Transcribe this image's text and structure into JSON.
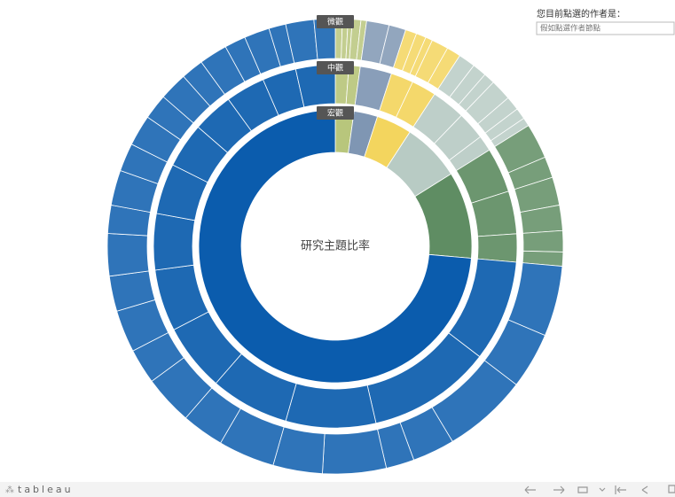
{
  "chart_data": {
    "type": "sunburst",
    "center_label": "研究主題比率",
    "levels": [
      "宏觀",
      "中觀",
      "微觀"
    ],
    "nodes": [
      {
        "color": "#b8c67c",
        "value": 22,
        "children": [
          {
            "value": 12,
            "children": [
              5,
              4,
              3
            ]
          },
          {
            "value": 10,
            "children": [
              6,
              4
            ]
          }
        ]
      },
      {
        "color": "#7f96b3",
        "value": 28,
        "children": [
          {
            "value": 28,
            "children": [
              16,
              12
            ]
          }
        ]
      },
      {
        "color": "#f3d55e",
        "value": 42,
        "children": [
          {
            "value": 20,
            "children": [
              8,
              7,
              5
            ]
          },
          {
            "value": 22,
            "children": [
              12,
              10
            ]
          }
        ]
      },
      {
        "color": "#b8cbc4",
        "value": 69,
        "children": [
          {
            "value": 30,
            "children": [
              12,
              10,
              8
            ]
          },
          {
            "value": 25,
            "children": [
              15,
              10
            ]
          },
          {
            "value": 14,
            "children": [
              8,
              6
            ]
          }
        ]
      },
      {
        "color": "#5f8d63",
        "value": 103,
        "children": [
          {
            "value": 40,
            "children": [
              25,
              15
            ]
          },
          {
            "value": 38,
            "children": [
              20,
              18
            ]
          },
          {
            "value": 25,
            "children": [
              15,
              10
            ]
          }
        ]
      },
      {
        "color": "#0b5cad",
        "value": 736,
        "children": [
          {
            "value": 90,
            "children": [
              50,
              40
            ]
          },
          {
            "value": 110,
            "children": [
              60,
              30,
              20
            ]
          },
          {
            "value": 80,
            "children": [
              45,
              35
            ]
          },
          {
            "value": 70,
            "children": [
              40,
              30
            ]
          },
          {
            "value": 60,
            "children": [
              35,
              25
            ]
          },
          {
            "value": 55,
            "children": [
              30,
              25
            ]
          },
          {
            "value": 50,
            "children": [
              30,
              20
            ]
          },
          {
            "value": 45,
            "children": [
              25,
              20
            ]
          },
          {
            "value": 40,
            "children": [
              22,
              18
            ]
          },
          {
            "value": 36,
            "children": [
              20,
              16
            ]
          },
          {
            "value": 35,
            "children": [
              20,
              15
            ]
          },
          {
            "value": 30,
            "children": [
              18,
              12
            ]
          },
          {
            "value": 35,
            "children": [
              20,
              15
            ]
          }
        ]
      }
    ]
  },
  "panel": {
    "title": "您目前點選的作者是：",
    "placeholder": "假如點選作者節點"
  },
  "footer": {
    "logo": "tableau"
  }
}
